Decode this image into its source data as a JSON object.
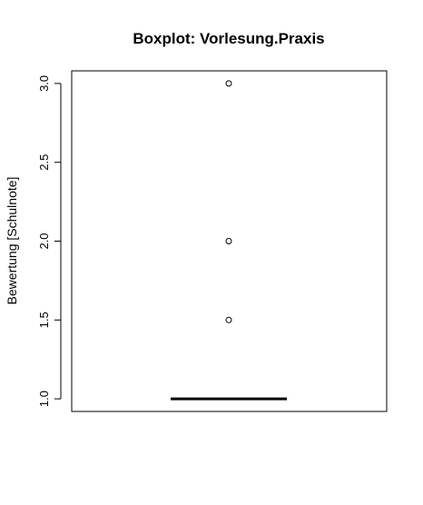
{
  "chart_data": {
    "type": "boxplot",
    "title": "Boxplot: Vorlesung.Praxis",
    "ylabel": "Bewertung [Schulnote]",
    "xlabel": "",
    "ylim": [
      0.92,
      3.08
    ],
    "yticks": [
      1.0,
      1.5,
      2.0,
      2.5,
      3.0
    ],
    "ytick_labels": [
      "1.0",
      "1.5",
      "2.0",
      "2.5",
      "3.0"
    ],
    "box": {
      "min": 1.0,
      "q1": 1.0,
      "median": 1.0,
      "q3": 1.0,
      "max": 1.0
    },
    "outliers": [
      1.5,
      2.0,
      3.0
    ]
  }
}
